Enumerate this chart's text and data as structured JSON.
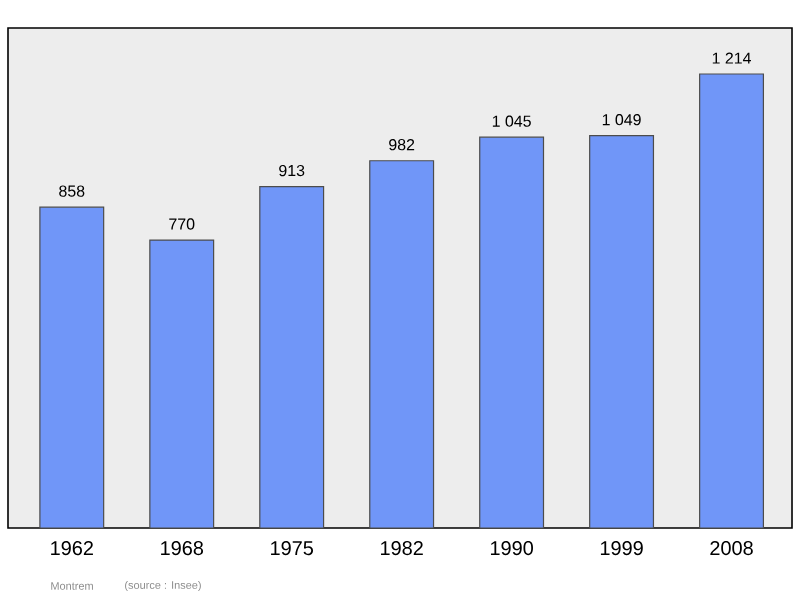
{
  "chart_data": {
    "type": "bar",
    "categories": [
      "1962",
      "1968",
      "1975",
      "1982",
      "1990",
      "1999",
      "2008"
    ],
    "values": [
      858,
      770,
      913,
      982,
      1045,
      1049,
      1214
    ],
    "value_labels": [
      "858",
      "770",
      "913",
      "982",
      "1 045",
      "1 049",
      "1 214"
    ],
    "color": "#7096f8",
    "ylim": [
      0,
      1337
    ],
    "annotations": [
      "Montrem",
      "(source : Insee)"
    ]
  }
}
